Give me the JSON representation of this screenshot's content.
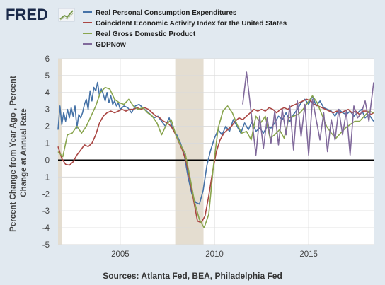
{
  "header": {
    "logo": "FRED",
    "logo_icon": "chart-line-icon"
  },
  "footer": {
    "source": "Sources: Atlanta Fed, BEA, Philadelphia Fed"
  },
  "colors": {
    "background": "#e1e9f0",
    "plot_bg": "#ffffff",
    "recession": "#e4ddd0",
    "grid": "#dadada",
    "zero_line": "#000000"
  },
  "chart_data": {
    "type": "line",
    "title": "",
    "ylabel": "Percent Change from Year Ago , Percent Change at Annual Rate",
    "xlabel": "",
    "xlim": [
      2001.7,
      2018.45
    ],
    "ylim": [
      -5,
      6
    ],
    "x_ticks": [
      2005,
      2010,
      2015
    ],
    "x_tick_labels": [
      "2005",
      "2010",
      "2015"
    ],
    "y_ticks": [
      -5,
      -4,
      -3,
      -2,
      -1,
      0,
      1,
      2,
      3,
      4,
      5,
      6
    ],
    "y_tick_labels": [
      "-5",
      "-4",
      "-3",
      "-2",
      "-1",
      "0",
      "1",
      "2",
      "3",
      "4",
      "5",
      "6"
    ],
    "grid": true,
    "legend_position": "top",
    "recessions": [
      [
        2001.7,
        2001.9
      ],
      [
        2007.92,
        2009.42
      ]
    ],
    "series": [
      {
        "name": "Real Personal Consumption Expenditures",
        "color": "#4572a7",
        "x": [
          2001.7,
          2001.8,
          2001.9,
          2002.0,
          2002.1,
          2002.2,
          2002.3,
          2002.4,
          2002.5,
          2002.6,
          2002.7,
          2002.8,
          2002.9,
          2003.0,
          2003.1,
          2003.2,
          2003.3,
          2003.4,
          2003.5,
          2003.6,
          2003.7,
          2003.8,
          2003.9,
          2004.0,
          2004.1,
          2004.2,
          2004.3,
          2004.4,
          2004.5,
          2004.6,
          2004.7,
          2004.8,
          2004.9,
          2005.0,
          2005.2,
          2005.4,
          2005.6,
          2005.8,
          2006.0,
          2006.2,
          2006.4,
          2006.6,
          2006.8,
          2007.0,
          2007.2,
          2007.4,
          2007.6,
          2007.8,
          2008.0,
          2008.2,
          2008.4,
          2008.6,
          2008.8,
          2009.0,
          2009.2,
          2009.4,
          2009.6,
          2009.8,
          2010.0,
          2010.2,
          2010.4,
          2010.6,
          2010.8,
          2011.0,
          2011.2,
          2011.4,
          2011.6,
          2011.8,
          2012.0,
          2012.2,
          2012.4,
          2012.6,
          2012.8,
          2013.0,
          2013.2,
          2013.4,
          2013.6,
          2013.8,
          2014.0,
          2014.2,
          2014.4,
          2014.6,
          2014.8,
          2015.0,
          2015.2,
          2015.4,
          2015.6,
          2015.8,
          2016.0,
          2016.2,
          2016.4,
          2016.6,
          2016.8,
          2017.0,
          2017.2,
          2017.4,
          2017.6,
          2017.8,
          2018.0,
          2018.2,
          2018.45
        ],
        "y": [
          1.8,
          3.2,
          2.1,
          2.8,
          2.3,
          3.0,
          2.5,
          3.1,
          2.6,
          3.2,
          1.9,
          2.7,
          2.5,
          2.8,
          3.3,
          3.6,
          3.0,
          4.1,
          3.5,
          4.3,
          4.1,
          4.6,
          3.8,
          4.2,
          3.9,
          3.5,
          4.0,
          3.4,
          3.8,
          3.3,
          3.5,
          3.2,
          3.4,
          3.0,
          3.2,
          3.1,
          2.8,
          3.2,
          3.3,
          3.1,
          2.9,
          2.7,
          2.5,
          2.6,
          2.3,
          2.0,
          2.5,
          1.8,
          1.5,
          1.0,
          0.3,
          -1.0,
          -2.0,
          -2.5,
          -2.6,
          -1.8,
          -0.3,
          0.6,
          1.3,
          1.8,
          1.5,
          2.0,
          1.7,
          2.4,
          2.0,
          1.6,
          2.2,
          1.8,
          2.3,
          1.7,
          1.9,
          1.6,
          2.0,
          1.9,
          2.2,
          2.6,
          2.4,
          2.8,
          2.3,
          2.7,
          3.0,
          3.4,
          3.6,
          3.3,
          3.8,
          3.2,
          3.5,
          3.1,
          3.0,
          2.9,
          2.6,
          3.0,
          2.8,
          2.7,
          2.9,
          2.6,
          2.8,
          3.0,
          2.5,
          2.7,
          2.3
        ]
      },
      {
        "name": "Coincident Economic Activity Index for the United States",
        "color": "#aa4643",
        "x": [
          2001.7,
          2001.9,
          2002.1,
          2002.3,
          2002.5,
          2002.7,
          2002.9,
          2003.1,
          2003.3,
          2003.5,
          2003.7,
          2003.9,
          2004.1,
          2004.3,
          2004.5,
          2004.7,
          2004.9,
          2005.1,
          2005.3,
          2005.5,
          2005.7,
          2005.9,
          2006.1,
          2006.3,
          2006.5,
          2006.7,
          2006.9,
          2007.1,
          2007.3,
          2007.5,
          2007.7,
          2007.9,
          2008.1,
          2008.3,
          2008.5,
          2008.7,
          2008.9,
          2009.1,
          2009.3,
          2009.5,
          2009.7,
          2009.9,
          2010.1,
          2010.3,
          2010.5,
          2010.7,
          2010.9,
          2011.1,
          2011.3,
          2011.5,
          2011.7,
          2011.9,
          2012.1,
          2012.3,
          2012.5,
          2012.7,
          2012.9,
          2013.1,
          2013.3,
          2013.5,
          2013.7,
          2013.9,
          2014.1,
          2014.3,
          2014.5,
          2014.7,
          2014.9,
          2015.1,
          2015.3,
          2015.5,
          2015.7,
          2015.9,
          2016.1,
          2016.3,
          2016.5,
          2016.7,
          2016.9,
          2017.1,
          2017.3,
          2017.5,
          2017.7,
          2017.9,
          2018.1,
          2018.3,
          2018.45
        ],
        "y": [
          0.8,
          0.1,
          -0.25,
          -0.3,
          -0.1,
          0.3,
          0.6,
          0.9,
          0.8,
          1.0,
          1.5,
          2.2,
          2.6,
          2.8,
          2.9,
          2.8,
          2.9,
          3.0,
          2.9,
          3.0,
          3.0,
          3.1,
          3.0,
          3.1,
          3.0,
          2.8,
          2.6,
          2.5,
          2.3,
          2.2,
          2.0,
          1.6,
          1.1,
          0.6,
          -0.1,
          -1.2,
          -2.4,
          -3.6,
          -3.7,
          -3.3,
          -2.1,
          -0.7,
          0.5,
          1.2,
          1.6,
          1.8,
          2.0,
          2.3,
          2.5,
          2.4,
          2.6,
          2.8,
          3.0,
          2.9,
          3.0,
          2.9,
          3.1,
          3.0,
          2.8,
          3.0,
          3.1,
          3.0,
          3.2,
          3.3,
          3.4,
          3.5,
          3.6,
          3.5,
          3.3,
          3.2,
          3.1,
          3.0,
          2.9,
          2.8,
          2.9,
          2.8,
          2.9,
          3.0,
          2.8,
          2.9,
          2.7,
          2.9,
          2.9,
          2.7,
          2.8
        ]
      },
      {
        "name": "Real Gross Domestic Product",
        "color": "#89a54e",
        "x": [
          2001.7,
          2001.95,
          2002.2,
          2002.45,
          2002.7,
          2002.95,
          2003.2,
          2003.45,
          2003.7,
          2003.95,
          2004.2,
          2004.45,
          2004.7,
          2004.95,
          2005.2,
          2005.45,
          2005.7,
          2005.95,
          2006.2,
          2006.45,
          2006.7,
          2006.95,
          2007.2,
          2007.45,
          2007.7,
          2007.95,
          2008.2,
          2008.45,
          2008.7,
          2008.95,
          2009.2,
          2009.45,
          2009.7,
          2009.95,
          2010.2,
          2010.45,
          2010.7,
          2010.95,
          2011.2,
          2011.45,
          2011.7,
          2011.95,
          2012.2,
          2012.45,
          2012.7,
          2012.95,
          2013.2,
          2013.45,
          2013.7,
          2013.95,
          2014.2,
          2014.45,
          2014.7,
          2014.95,
          2015.2,
          2015.45,
          2015.7,
          2015.95,
          2016.2,
          2016.45,
          2016.7,
          2016.95,
          2017.2,
          2017.45,
          2017.7,
          2017.95,
          2018.2,
          2018.45
        ],
        "y": [
          0.5,
          0.2,
          1.5,
          1.6,
          2.0,
          1.6,
          2.0,
          2.6,
          3.2,
          4.0,
          4.3,
          4.2,
          3.6,
          3.4,
          3.3,
          3.6,
          3.2,
          3.0,
          3.1,
          2.8,
          2.6,
          2.2,
          1.5,
          2.1,
          2.4,
          1.5,
          0.9,
          0.4,
          -1.0,
          -2.5,
          -3.5,
          -4.0,
          -3.2,
          -0.3,
          1.9,
          2.9,
          3.2,
          2.8,
          2.1,
          1.6,
          1.7,
          1.2,
          2.6,
          2.2,
          2.6,
          1.3,
          1.5,
          1.8,
          1.3,
          2.5,
          2.6,
          2.7,
          3.0,
          3.4,
          3.8,
          3.4,
          2.7,
          2.0,
          1.6,
          1.3,
          1.6,
          1.9,
          2.1,
          2.3,
          2.3,
          2.6,
          2.9,
          2.8
        ]
      },
      {
        "name": "GDPNow",
        "color": "#80699b",
        "x": [
          2011.5,
          2011.7,
          2011.95,
          2012.2,
          2012.4,
          2012.6,
          2012.8,
          2013.0,
          2013.2,
          2013.4,
          2013.6,
          2013.8,
          2014.0,
          2014.2,
          2014.4,
          2014.6,
          2014.8,
          2015.0,
          2015.2,
          2015.4,
          2015.6,
          2015.8,
          2016.0,
          2016.2,
          2016.4,
          2016.6,
          2016.8,
          2017.0,
          2017.2,
          2017.4,
          2017.6,
          2017.8,
          2018.0,
          2018.2,
          2018.45
        ],
        "y": [
          3.3,
          5.2,
          2.8,
          0.3,
          2.6,
          0.7,
          2.5,
          1.0,
          2.9,
          0.9,
          3.0,
          1.5,
          3.2,
          0.6,
          3.5,
          1.4,
          3.3,
          0.3,
          3.6,
          2.4,
          1.2,
          2.8,
          0.5,
          2.4,
          1.2,
          3.0,
          1.5,
          2.9,
          0.3,
          3.2,
          2.5,
          2.8,
          3.5,
          2.3,
          4.6
        ]
      }
    ]
  }
}
